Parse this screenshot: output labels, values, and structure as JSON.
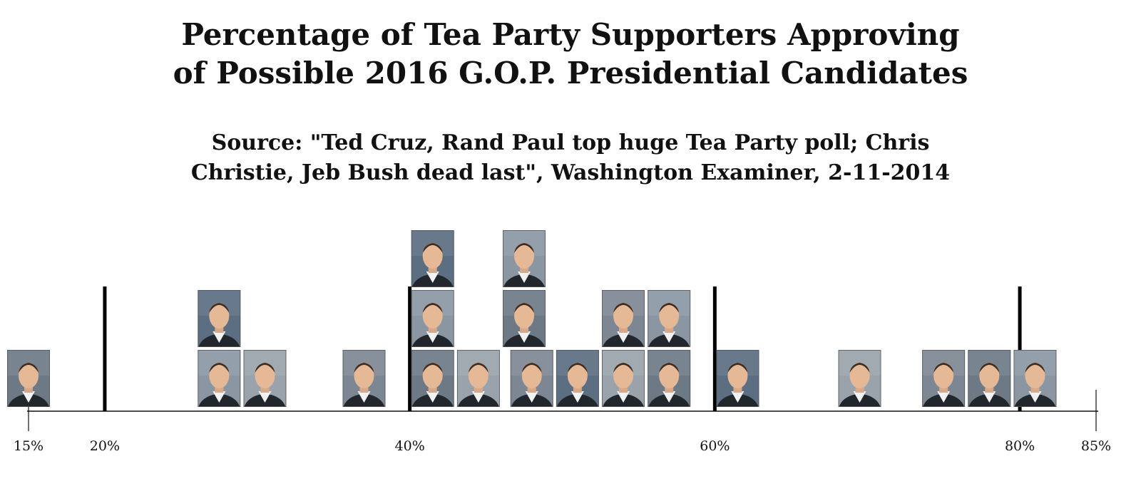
{
  "chart_data": {
    "type": "scatter",
    "title": [
      "Percentage of Tea Party Supporters Approving",
      "of Possible 2016 G.O.P. Presidential Candidates"
    ],
    "subtitle": [
      "Source: \"Ted Cruz, Rand Paul top huge Tea Party poll; Chris",
      "Christie, Jeb Bush dead last\", Washington Examiner, 2-11-2014"
    ],
    "xlim": [
      15,
      85
    ],
    "major_ticks": [
      20,
      40,
      60,
      80
    ],
    "tick_labels": [
      {
        "value": 15,
        "label": "15%"
      },
      {
        "value": 20,
        "label": "20%"
      },
      {
        "value": 40,
        "label": "40%"
      },
      {
        "value": 60,
        "label": "60%"
      },
      {
        "value": 80,
        "label": "80%"
      },
      {
        "value": 85,
        "label": "85%"
      }
    ],
    "points": [
      {
        "x": 15,
        "stack": 0
      },
      {
        "x": 27.5,
        "stack": 0
      },
      {
        "x": 27.5,
        "stack": 1
      },
      {
        "x": 30.5,
        "stack": 0
      },
      {
        "x": 37,
        "stack": 0
      },
      {
        "x": 41.5,
        "stack": 0
      },
      {
        "x": 41.5,
        "stack": 1
      },
      {
        "x": 41.5,
        "stack": 2
      },
      {
        "x": 44.5,
        "stack": 0
      },
      {
        "x": 48,
        "stack": 0
      },
      {
        "x": 47.5,
        "stack": 1
      },
      {
        "x": 47.5,
        "stack": 2
      },
      {
        "x": 51,
        "stack": 0
      },
      {
        "x": 54,
        "stack": 0
      },
      {
        "x": 54,
        "stack": 1
      },
      {
        "x": 57,
        "stack": 0
      },
      {
        "x": 57,
        "stack": 1
      },
      {
        "x": 61.5,
        "stack": 0
      },
      {
        "x": 69.5,
        "stack": 0
      },
      {
        "x": 75,
        "stack": 0
      },
      {
        "x": 78,
        "stack": 0
      },
      {
        "x": 81,
        "stack": 0
      }
    ]
  }
}
